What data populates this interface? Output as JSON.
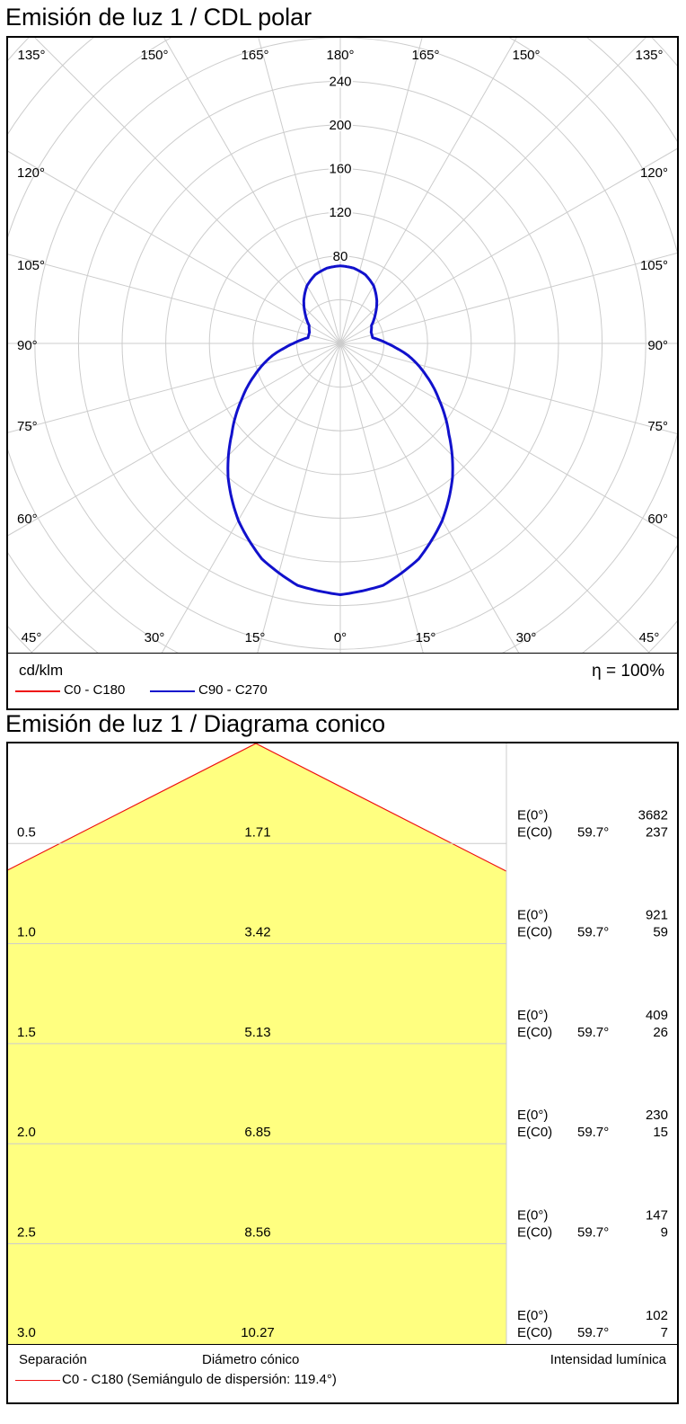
{
  "polar": {
    "title": "Emisión de luz 1 / CDL polar",
    "unit": "cd/klm",
    "efficiency": "η = 100%",
    "legend": [
      {
        "label": "C0 - C180",
        "color": "#ee1111"
      },
      {
        "label": "C90 - C270",
        "color": "#1111cc"
      }
    ],
    "radial_labels": [
      "80",
      "120",
      "160",
      "200",
      "240"
    ],
    "angle_labels": {
      "top": [
        "135°",
        "150°",
        "165°",
        "180°",
        "165°",
        "150°",
        "135°"
      ],
      "left": [
        "120°",
        "105°",
        "90°",
        "75°",
        "60°"
      ],
      "right": [
        "120°",
        "105°",
        "90°",
        "75°",
        "60°"
      ],
      "bottom": [
        "45°",
        "30°",
        "15°",
        "0°",
        "15°",
        "30°",
        "45°"
      ]
    }
  },
  "cone": {
    "title": "Emisión de luz 1 / Diagrama conico",
    "footer_left": "Separación",
    "footer_mid": "Diámetro cónico",
    "footer_right": "Intensidad lumínica",
    "legend": "C0 - C180 (Semiángulo de dispersión: 119.4°)",
    "legend_color": "#ee1111",
    "fill_color": "#ffff80",
    "rows": [
      {
        "sep": "0.5",
        "diam": "1.71",
        "e0_label": "E(0°)",
        "ec0_label": "E(C0)",
        "angle": "59.7°",
        "e0": "3682",
        "ec0": "237"
      },
      {
        "sep": "1.0",
        "diam": "3.42",
        "e0_label": "E(0°)",
        "ec0_label": "E(C0)",
        "angle": "59.7°",
        "e0": "921",
        "ec0": "59"
      },
      {
        "sep": "1.5",
        "diam": "5.13",
        "e0_label": "E(0°)",
        "ec0_label": "E(C0)",
        "angle": "59.7°",
        "e0": "409",
        "ec0": "26"
      },
      {
        "sep": "2.0",
        "diam": "6.85",
        "e0_label": "E(0°)",
        "ec0_label": "E(C0)",
        "angle": "59.7°",
        "e0": "230",
        "ec0": "15"
      },
      {
        "sep": "2.5",
        "diam": "8.56",
        "e0_label": "E(0°)",
        "ec0_label": "E(C0)",
        "angle": "59.7°",
        "e0": "147",
        "ec0": "9"
      },
      {
        "sep": "3.0",
        "diam": "10.27",
        "e0_label": "E(0°)",
        "ec0_label": "E(C0)",
        "angle": "59.7°",
        "e0": "102",
        "ec0": "7"
      }
    ]
  },
  "chart_data": [
    {
      "type": "polar-line",
      "title": "Emisión de luz 1 / CDL polar",
      "unit": "cd/klm",
      "r_ticks": [
        80,
        120,
        160,
        200,
        240
      ],
      "grid": true,
      "series": [
        {
          "name": "C0 - C180",
          "color": "#ee1111",
          "visible_in_plot": false
        },
        {
          "name": "C90 - C270",
          "color": "#1111cc",
          "gamma_deg": [
            0,
            10,
            20,
            30,
            40,
            50,
            60,
            70,
            80,
            85,
            90,
            95,
            100,
            110,
            120,
            130,
            140,
            150,
            160,
            170,
            180
          ],
          "cd_klm": [
            230,
            225,
            210,
            187,
            160,
            130,
            105,
            83,
            63,
            52,
            43,
            36,
            30,
            30,
            33,
            42,
            52,
            61,
            67,
            70,
            71
          ]
        }
      ]
    },
    {
      "type": "table",
      "title": "Emisión de luz 1 / Diagrama conico",
      "half_angle_deg": 119.4,
      "columns": [
        "Separación",
        "Diámetro cónico",
        "E(0°)",
        "E(C0)"
      ],
      "rows": [
        [
          0.5,
          1.71,
          3682,
          237
        ],
        [
          1.0,
          3.42,
          921,
          59
        ],
        [
          1.5,
          5.13,
          409,
          26
        ],
        [
          2.0,
          6.85,
          230,
          15
        ],
        [
          2.5,
          8.56,
          147,
          9
        ],
        [
          3.0,
          10.27,
          102,
          7
        ]
      ],
      "c0_angle_deg": 59.7
    }
  ]
}
